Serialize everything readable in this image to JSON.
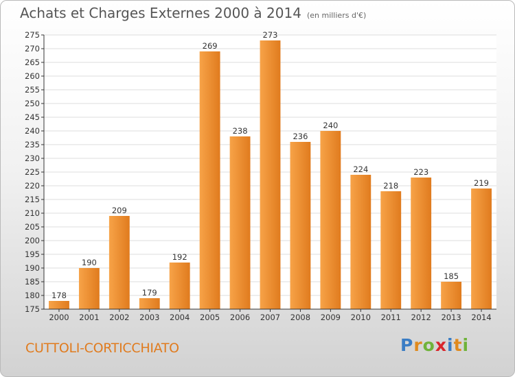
{
  "header": {
    "title": "Achats et Charges Externes 2000 à 2014",
    "subtitle": "(en milliers d'€)"
  },
  "footer": {
    "commune": "CUTTOLI-CORTICCHIATO",
    "logo_letters": [
      "P",
      "r",
      "o",
      "x",
      "i",
      "t",
      "i"
    ]
  },
  "colors": {
    "bar_light": "#f7a348",
    "bar_dark": "#e07b1e",
    "axis": "#333333",
    "grid": "#dddddd",
    "commune_text": "#e07b1e",
    "logo": [
      "#3b7dc4",
      "#e08a1e",
      "#6fb33a",
      "#d9262b",
      "#3b7dc4",
      "#e08a1e",
      "#6fb33a"
    ]
  },
  "chart_data": {
    "type": "bar",
    "title": "Achats et Charges Externes 2000 à 2014",
    "subtitle": "(en milliers d'€)",
    "xlabel": "",
    "ylabel": "",
    "categories": [
      "2000",
      "2001",
      "2002",
      "2003",
      "2004",
      "2005",
      "2006",
      "2007",
      "2008",
      "2009",
      "2010",
      "2011",
      "2012",
      "2013",
      "2014"
    ],
    "values": [
      178,
      190,
      209,
      179,
      192,
      269,
      238,
      273,
      236,
      240,
      224,
      218,
      223,
      185,
      219
    ],
    "ylim": [
      175,
      275
    ],
    "yticks": [
      175,
      180,
      185,
      190,
      195,
      200,
      205,
      210,
      215,
      220,
      225,
      230,
      235,
      240,
      245,
      250,
      255,
      260,
      265,
      270,
      275
    ],
    "grid": true,
    "legend": "none"
  }
}
